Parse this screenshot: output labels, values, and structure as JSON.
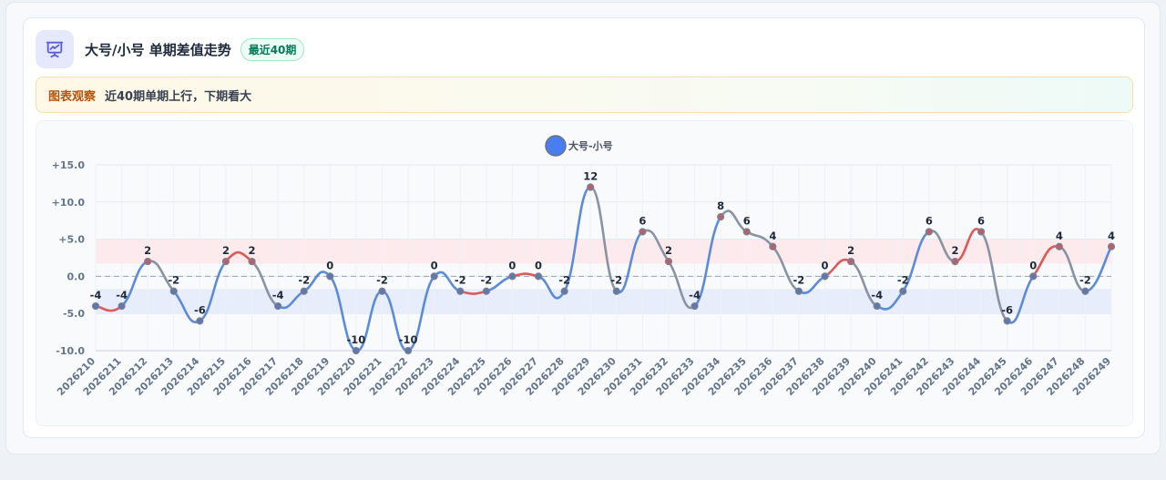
{
  "header": {
    "title": "大号/小号 单期差值走势",
    "badge": "最近40期",
    "icon": "presentation-chart-icon"
  },
  "note": {
    "label": "图表观察",
    "text": "近40期单期上行，下期看大"
  },
  "colors": {
    "up": "#dc5a5a",
    "down": "#5b8bd9",
    "flat": "#8a93a3",
    "legend": "#4a7ef0",
    "upper_band": "#fde8ea",
    "lower_band": "#e4ebfb"
  },
  "chart_data": {
    "type": "line",
    "title": "",
    "legend": [
      "大号-小号"
    ],
    "legend_position": "top-center",
    "x": [
      "2026210",
      "2026211",
      "2026212",
      "2026213",
      "2026214",
      "2026215",
      "2026216",
      "2026217",
      "2026218",
      "2026219",
      "2026220",
      "2026221",
      "2026222",
      "2026223",
      "2026224",
      "2026225",
      "2026226",
      "2026227",
      "2026228",
      "2026229",
      "2026230",
      "2026231",
      "2026232",
      "2026233",
      "2026234",
      "2026235",
      "2026236",
      "2026237",
      "2026238",
      "2026239",
      "2026240",
      "2026241",
      "2026242",
      "2026243",
      "2026244",
      "2026245",
      "2026246",
      "2026247",
      "2026248",
      "2026249"
    ],
    "series": [
      {
        "name": "大号-小号",
        "values": [
          -4,
          -4,
          2,
          -2,
          -6,
          2,
          2,
          -4,
          -2,
          0,
          -10,
          -2,
          -10,
          0,
          -2,
          -2,
          0,
          0,
          -2,
          12,
          -2,
          6,
          2,
          -4,
          8,
          6,
          4,
          -2,
          0,
          2,
          -4,
          -2,
          6,
          2,
          6,
          -6,
          0,
          4,
          -2,
          4
        ]
      }
    ],
    "ylim": [
      -10,
      15
    ],
    "yticks": [
      "+15.0",
      "+10.0",
      "+5.0",
      "0.0",
      "-5.0",
      "-10.0"
    ],
    "yticks_values": [
      15,
      10,
      5,
      0,
      -5,
      -10
    ],
    "bands": [
      {
        "from": 1.7,
        "to": 5
      },
      {
        "from": -5,
        "to": -1.7
      }
    ],
    "zero_line": 0,
    "grid": true,
    "xlabel": "",
    "ylabel": ""
  }
}
